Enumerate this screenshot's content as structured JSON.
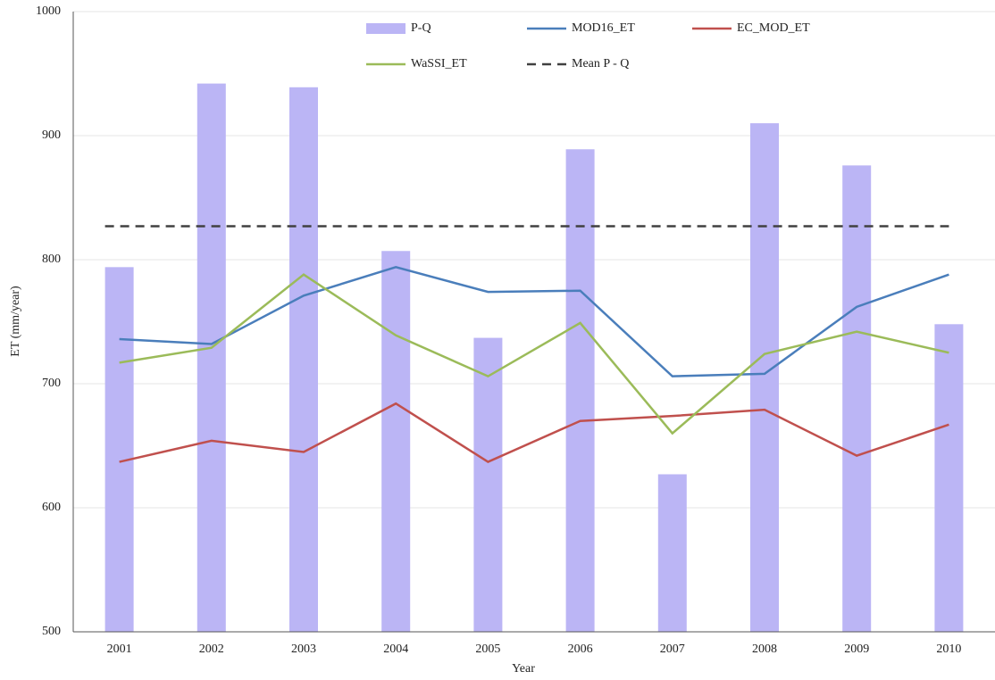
{
  "chart_data": {
    "type": "combo",
    "x_label": "Year",
    "y_label": "ET (mm/year)",
    "categories": [
      "2001",
      "2002",
      "2003",
      "2004",
      "2005",
      "2006",
      "2007",
      "2008",
      "2009",
      "2010"
    ],
    "series": [
      {
        "name": "P-Q",
        "type": "bar",
        "color": "#bbb5f5",
        "values": [
          794,
          942,
          939,
          807,
          737,
          889,
          627,
          910,
          876,
          748
        ]
      },
      {
        "name": "MOD16_ET",
        "type": "line",
        "color": "#4a7ebb",
        "values": [
          736,
          732,
          771,
          794,
          774,
          775,
          706,
          708,
          762,
          788
        ]
      },
      {
        "name": "EC_MOD_ET",
        "type": "line",
        "color": "#c0504d",
        "values": [
          637,
          654,
          645,
          684,
          637,
          670,
          674,
          679,
          642,
          667
        ]
      },
      {
        "name": "WaSSI_ET",
        "type": "line",
        "color": "#9bbb59",
        "values": [
          717,
          729,
          788,
          739,
          706,
          749,
          660,
          724,
          742,
          725
        ]
      }
    ],
    "reference_lines": [
      {
        "name": "Mean P - Q",
        "value": 827,
        "color": "#404040",
        "dashed": true
      }
    ],
    "ylim": [
      500,
      1000
    ],
    "yticks": [
      500,
      600,
      700,
      800,
      900,
      1000
    ],
    "grid": true
  }
}
